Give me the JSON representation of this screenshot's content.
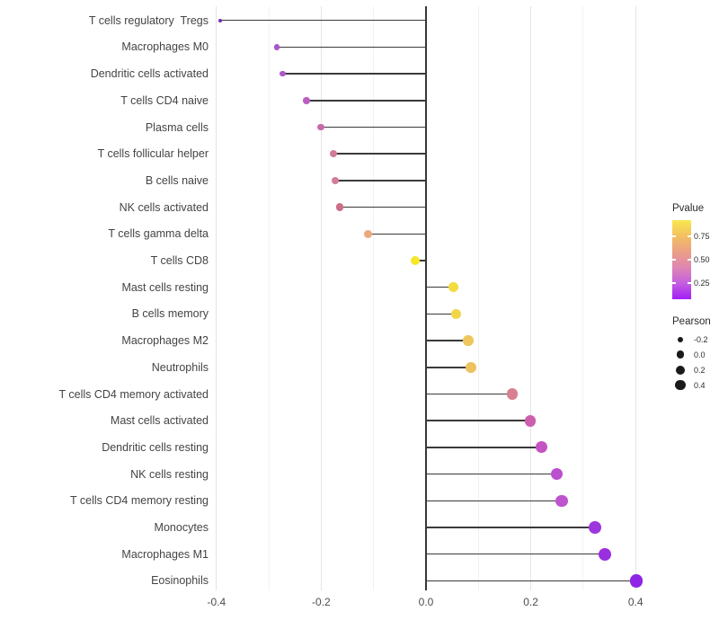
{
  "chart_data": {
    "type": "lollipop",
    "orientation": "horizontal",
    "title": "",
    "xlabel": "",
    "ylabel": "",
    "baseline": 0,
    "xlim": [
      -0.42,
      0.45
    ],
    "grid": "vertical-major-and-minor",
    "categories": [
      "T cells regulatory  Tregs",
      "Macrophages M0",
      "Dendritic cells activated",
      "T cells CD4 naive",
      "Plasma cells",
      "T cells follicular helper",
      "B cells naive",
      "NK cells activated",
      "T cells gamma delta",
      "T cells CD8",
      "Mast cells resting",
      "B cells memory",
      "Macrophages M2",
      "Neutrophils",
      "T cells CD4 memory activated",
      "Mast cells activated",
      "Dendritic cells resting",
      "NK cells resting",
      "T cells CD4 memory resting",
      "Monocytes",
      "Macrophages M1",
      "Eosinophils"
    ],
    "series": [
      {
        "name": "Pearson",
        "values": [
          -0.393,
          -0.285,
          -0.274,
          -0.228,
          -0.201,
          -0.177,
          -0.173,
          -0.165,
          -0.111,
          -0.021,
          0.053,
          0.057,
          0.081,
          0.086,
          0.165,
          0.199,
          0.22,
          0.249,
          0.259,
          0.322,
          0.341,
          0.401
        ]
      },
      {
        "name": "Pvalue (estimated from color scale)",
        "values": [
          0.06,
          0.17,
          0.19,
          0.25,
          0.33,
          0.42,
          0.44,
          0.49,
          0.66,
          0.92,
          0.86,
          0.83,
          0.76,
          0.73,
          0.46,
          0.36,
          0.28,
          0.23,
          0.24,
          0.13,
          0.11,
          0.07
        ]
      }
    ],
    "point_colors": [
      "#7a2fb5",
      "#a855cb",
      "#ab58c8",
      "#bb5ec1",
      "#c76aab",
      "#d3799c",
      "#d37d97",
      "#cc6e88",
      "#eaa97b",
      "#f4e828",
      "#f3dc3d",
      "#f1d648",
      "#eec75c",
      "#edc160",
      "#d9808f",
      "#cc5fae",
      "#c553c1",
      "#bb4fce",
      "#bd54cd",
      "#9e36de",
      "#9a2fe0",
      "#8f23e6"
    ],
    "x_ticks": [
      -0.4,
      -0.2,
      0.0,
      0.2,
      0.4
    ],
    "x_tick_labels": [
      "-0.4",
      "-0.2",
      "0.0",
      "0.2",
      "0.4"
    ],
    "x_minor_ticks": [
      -0.3,
      -0.1,
      0.1,
      0.3
    ]
  },
  "legend": {
    "pvalue": {
      "title": "Pvalue",
      "tick_labels": [
        "0.75",
        "0.50",
        "0.25"
      ],
      "gradient_top_to_bottom": [
        "#f8e74e",
        "#f3c061",
        "#eb9f85",
        "#df86b2",
        "#c45ee0",
        "#a21ef5"
      ]
    },
    "pearson": {
      "title": "Pearson",
      "labels": [
        "-0.2",
        "0.0",
        "0.2",
        "0.4"
      ],
      "values": [
        -0.2,
        0.0,
        0.2,
        0.4
      ],
      "dot_color": "#1a1a1a"
    }
  },
  "colors": {
    "background": "#ffffff",
    "segment": "#3a3a3a",
    "zero_line": "#383838",
    "grid_major": "#e4e4e4",
    "grid_minor": "#f2f2f2",
    "axis_text": "#4d4d4d"
  }
}
